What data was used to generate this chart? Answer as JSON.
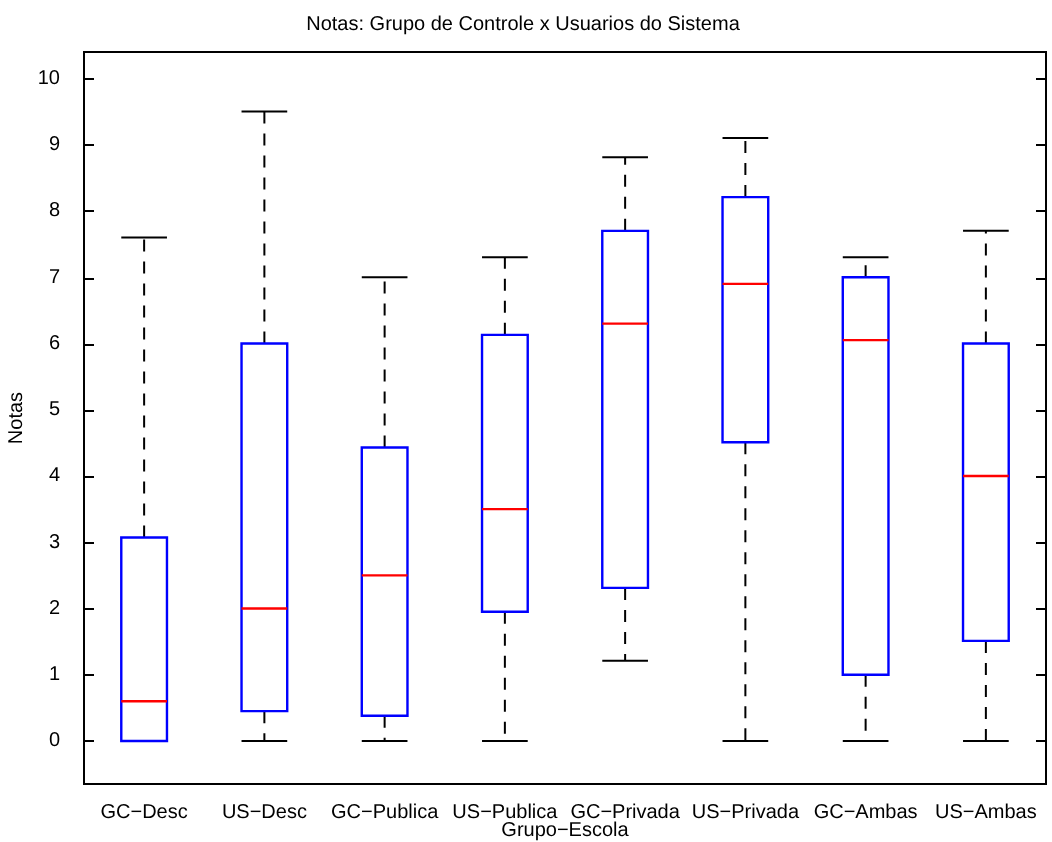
{
  "chart_data": {
    "type": "box",
    "title": "Notas: Grupo de Controle x Usuarios do Sistema",
    "xlabel": "Grupo−Escola",
    "ylabel": "Notas",
    "categories": [
      "GC−Desc",
      "US−Desc",
      "GC−Publica",
      "US−Publica",
      "GC−Privada",
      "US−Privada",
      "GC−Ambas",
      "US−Ambas"
    ],
    "color": "#0000ff",
    "boxes": [
      {
        "low": 0,
        "q1": 0,
        "median": 0.6,
        "q3": 3.07,
        "high": 7.6
      },
      {
        "low": 0,
        "q1": 0.45,
        "median": 2.0,
        "q3": 6.0,
        "high": 9.5
      },
      {
        "low": 0,
        "q1": 0.38,
        "median": 2.5,
        "q3": 4.43,
        "high": 7.0
      },
      {
        "low": 0,
        "q1": 1.95,
        "median": 3.5,
        "q3": 6.13,
        "high": 7.3
      },
      {
        "low": 1.21,
        "q1": 2.31,
        "median": 6.3,
        "q3": 7.7,
        "high": 8.81
      },
      {
        "low": 0,
        "q1": 4.51,
        "median": 6.9,
        "q3": 8.21,
        "high": 9.1
      },
      {
        "low": 0,
        "q1": 1.0,
        "median": 6.05,
        "q3": 7.0,
        "high": 7.3
      },
      {
        "low": 0,
        "q1": 1.51,
        "median": 4.0,
        "q3": 6.0,
        "high": 7.7
      }
    ],
    "ylim": [
      -0.65,
      10.4
    ],
    "yticks": [
      0,
      1,
      2,
      3,
      4,
      5,
      6,
      7,
      8,
      9,
      10
    ]
  }
}
